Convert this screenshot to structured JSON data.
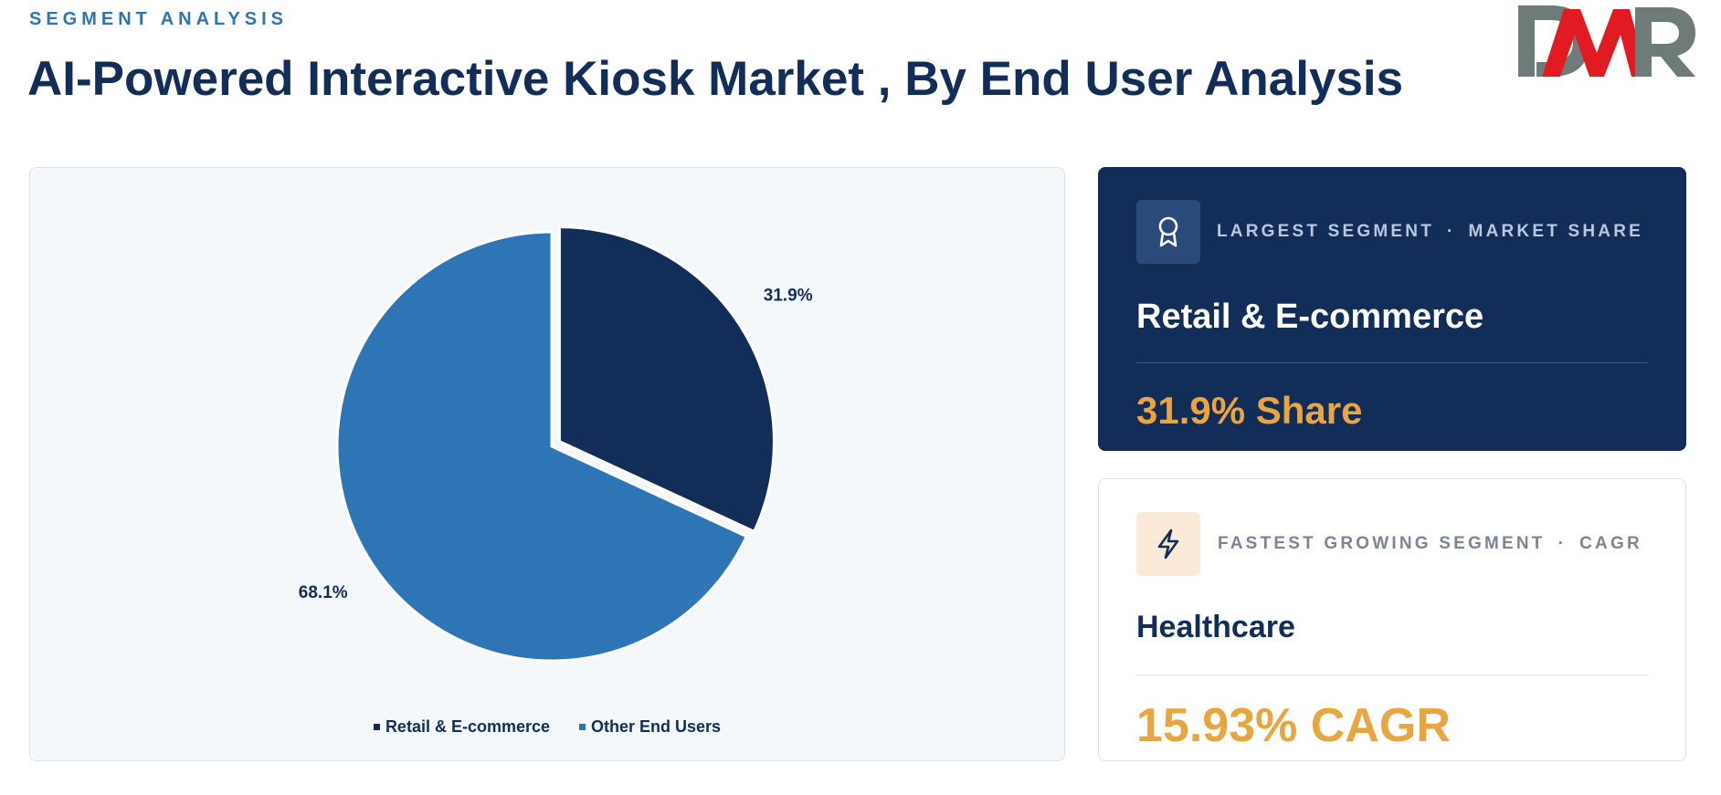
{
  "header": {
    "eyebrow": "SEGMENT ANALYSIS",
    "title": "AI-Powered Interactive Kiosk Market , By End User Analysis"
  },
  "logo": {
    "text": "DMR",
    "colors": {
      "d_m": "#6e7b78",
      "accent": "#e21b23"
    }
  },
  "colors": {
    "navy": "#132d59",
    "blue": "#2e75b6",
    "gold": "#e8a540"
  },
  "chart_data": {
    "type": "pie",
    "title": "",
    "categories": [
      "Retail & E-commerce",
      "Other End Users"
    ],
    "values": [
      31.9,
      68.1
    ],
    "labels": [
      "31.9%",
      "68.1%"
    ],
    "colors": [
      "#132d59",
      "#2e75b6"
    ],
    "exploded": [
      true,
      false
    ],
    "legend": "bottom-center"
  },
  "largest": {
    "icon": "award-ribbon-icon",
    "kicker_left": "LARGEST SEGMENT",
    "kicker_sep": "·",
    "kicker_right": "MARKET SHARE",
    "name": "Retail & E-commerce",
    "stat": "31.9% Share"
  },
  "fastest": {
    "icon": "lightning-bolt-icon",
    "kicker_left": "FASTEST GROWING SEGMENT",
    "kicker_sep": "·",
    "kicker_right": "CAGR",
    "name": "Healthcare",
    "stat": "15.93% CAGR"
  }
}
